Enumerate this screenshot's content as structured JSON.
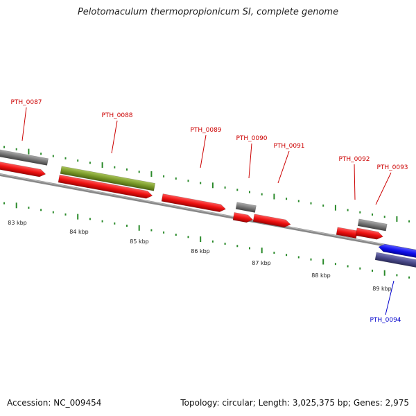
{
  "title": "Pelotomaculum thermopropionicum SI, complete genome",
  "footer": {
    "accession": "Accession: NC_009454",
    "summary": "Topology: circular; Length: 3,025,375 bp; Genes: 2,975"
  },
  "colors": {
    "cds_red": "#ee1111",
    "gene_grey": "#777777",
    "olive": "#7a9a2a",
    "blue": "#1111ee",
    "slate": "#4a4a8a",
    "tick_green": "#2a8a2a",
    "label_red": "#cc0000",
    "label_blue": "#0000cc",
    "backbone": "#888888"
  },
  "scale": {
    "labels": [
      "83 kbp",
      "84 kbp",
      "85 kbp",
      "86 kbp",
      "87 kbp",
      "88 kbp",
      "89 kbp"
    ]
  },
  "gene_labels": [
    {
      "text": "PTH_0087",
      "color": "red"
    },
    {
      "text": "PTH_0088",
      "color": "red"
    },
    {
      "text": "PTH_0089",
      "color": "red"
    },
    {
      "text": "PTH_0090",
      "color": "red"
    },
    {
      "text": "PTH_0091",
      "color": "red"
    },
    {
      "text": "PTH_0092",
      "color": "red"
    },
    {
      "text": "PTH_0093",
      "color": "red"
    },
    {
      "text": "PTH_0094",
      "color": "blue"
    }
  ]
}
